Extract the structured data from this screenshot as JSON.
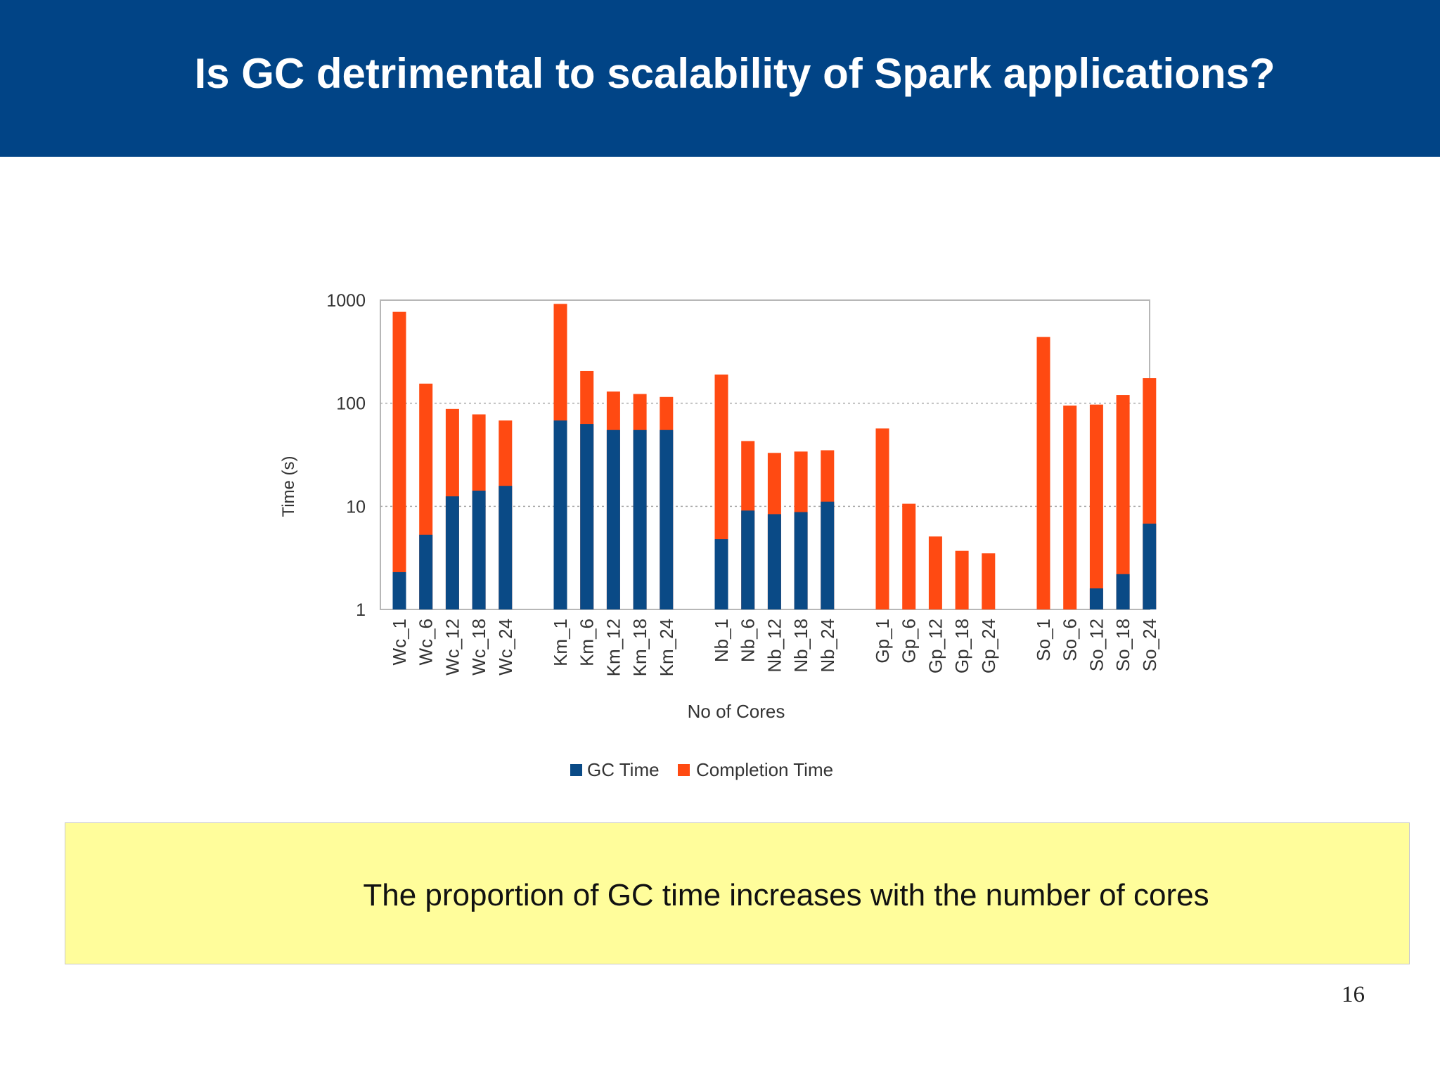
{
  "slide": {
    "title": "Is GC detrimental to scalability of Spark applications?",
    "note": "The proportion of GC time increases with the number of cores",
    "page_number": "16"
  },
  "colors": {
    "header_bg": "#014486",
    "gc_time": "#0a4a86",
    "completion_time": "#ff4a12",
    "note_bg": "#fffd9b"
  },
  "chart_data": {
    "type": "bar",
    "stacked": true,
    "title": "",
    "xlabel": "No of Cores",
    "ylabel": "Time (s)",
    "yscale": "log",
    "ylim": [
      1,
      1000
    ],
    "yticks": [
      "1",
      "10",
      "100",
      "1000"
    ],
    "grid": "horizontal dashed",
    "legend": "bottom-center",
    "groups": [
      {
        "categories": [
          "Wc_1",
          "Wc_6",
          "Wc_12",
          "Wc_18",
          "Wc_24"
        ]
      },
      {
        "categories": [
          "Km_1",
          "Km_6",
          "Km_12",
          "Km_18",
          "Km_24"
        ]
      },
      {
        "categories": [
          "Nb_1",
          "Nb_6",
          "Nb_12",
          "Nb_18",
          "Nb_24"
        ]
      },
      {
        "categories": [
          "Gp_1",
          "Gp_6",
          "Gp_12",
          "Gp_18",
          "Gp_24"
        ]
      },
      {
        "categories": [
          "So_1",
          "So_6",
          "So_12",
          "So_18",
          "So_24"
        ]
      }
    ],
    "series": [
      {
        "name": "GC Time",
        "values": [
          2.3,
          5.3,
          12.5,
          14.2,
          15.8,
          68,
          63,
          55,
          55,
          55,
          4.8,
          9.1,
          8.4,
          8.8,
          11.1,
          1,
          1,
          1,
          1,
          1,
          1,
          1,
          1.6,
          2.2,
          6.8
        ]
      },
      {
        "name": "Completion Time",
        "values": [
          770,
          155,
          88,
          78,
          68,
          920,
          205,
          130,
          123,
          115,
          190,
          43,
          33,
          34,
          35,
          57,
          10.6,
          5.1,
          3.7,
          3.5,
          440,
          95,
          97,
          120,
          175
        ]
      }
    ]
  }
}
